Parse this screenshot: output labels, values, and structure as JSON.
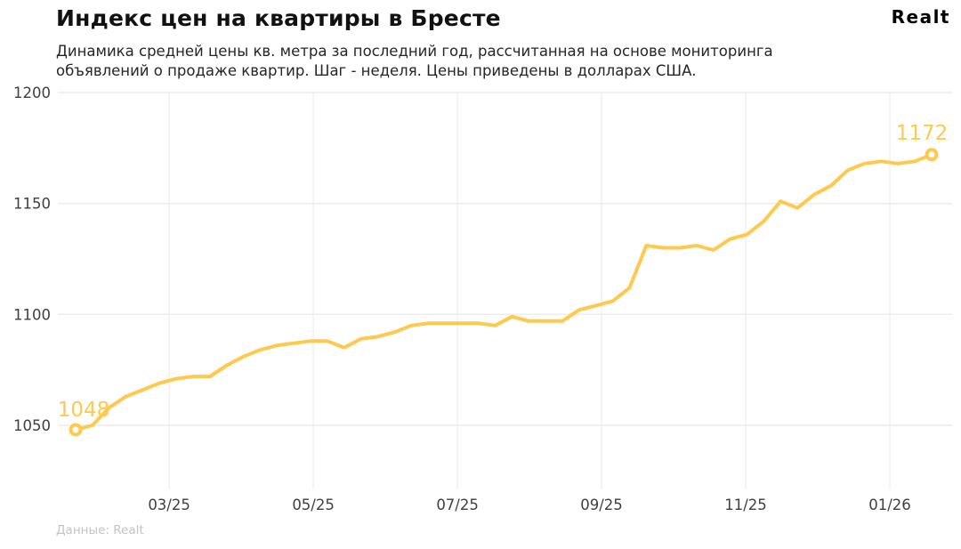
{
  "header": {
    "title": "Индекс цен на квартиры в Бресте",
    "subtitle_lines": [
      "Динамика средней цены кв. метра за последний год, рассчитанная на основе мониторинга",
      "объявлений о продаже квартир. Шаг - неделя. Цены приведены в долларах США."
    ],
    "logo": "Realt"
  },
  "footer": {
    "source": "Данные: Realt"
  },
  "chart_data": {
    "type": "line",
    "title": "Индекс цен на квартиры в Бресте",
    "x_unit": "неделя",
    "values": [
      1048,
      1050,
      1058,
      1063,
      1066,
      1069,
      1071,
      1072,
      1072,
      1077,
      1081,
      1084,
      1086,
      1087,
      1088,
      1088,
      1085,
      1089,
      1090,
      1092,
      1095,
      1096,
      1096,
      1096,
      1096,
      1095,
      1099,
      1097,
      1097,
      1097,
      1102,
      1104,
      1106,
      1112,
      1131,
      1130,
      1130,
      1131,
      1129,
      1134,
      1136,
      1142,
      1151,
      1148,
      1154,
      1158,
      1165,
      1168,
      1169,
      1168,
      1169,
      1172
    ],
    "first_point_label": "1048",
    "last_point_label": "1172",
    "y_ticks": [
      1050,
      1100,
      1150,
      1200
    ],
    "x_ticks": [
      {
        "label": "03/25",
        "week": 5.57
      },
      {
        "label": "05/25",
        "week": 14.16
      },
      {
        "label": "07/25",
        "week": 22.75
      },
      {
        "label": "09/25",
        "week": 31.33
      },
      {
        "label": "11/25",
        "week": 39.92
      },
      {
        "label": "01/26",
        "week": 48.51
      }
    ],
    "ylim": [
      1025,
      1205
    ],
    "grid": true,
    "legend": false,
    "colors": {
      "line": "#FFC94D",
      "point_label": "#FFC94D",
      "marker_fill": "#FFFFFF",
      "h_grid": "#ECECEC",
      "v_grid": "#F1F1F1",
      "tick_label": "#3F3F3F"
    }
  }
}
